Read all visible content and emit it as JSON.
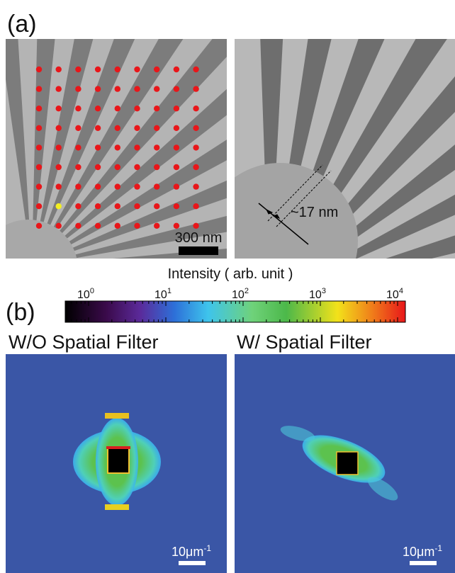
{
  "panel_a": {
    "label": "(a)",
    "scale_bar_label": "300 nm",
    "measurement_label": "~17 nm"
  },
  "colorbar": {
    "title": "Intensity ( arb. unit )",
    "ticks": [
      {
        "base": "10",
        "exponent": "0"
      },
      {
        "base": "10",
        "exponent": "1"
      },
      {
        "base": "10",
        "exponent": "2"
      },
      {
        "base": "10",
        "exponent": "3"
      },
      {
        "base": "10",
        "exponent": "4"
      }
    ]
  },
  "panel_b": {
    "label": "(b)",
    "images": [
      {
        "title": "W/O Spatial Filter",
        "scale_bar": {
          "text": "10μm",
          "superscript": "-1"
        }
      },
      {
        "title": "W/ Spatial Filter",
        "scale_bar": {
          "text": "10μm",
          "superscript": "-1"
        }
      }
    ]
  }
}
